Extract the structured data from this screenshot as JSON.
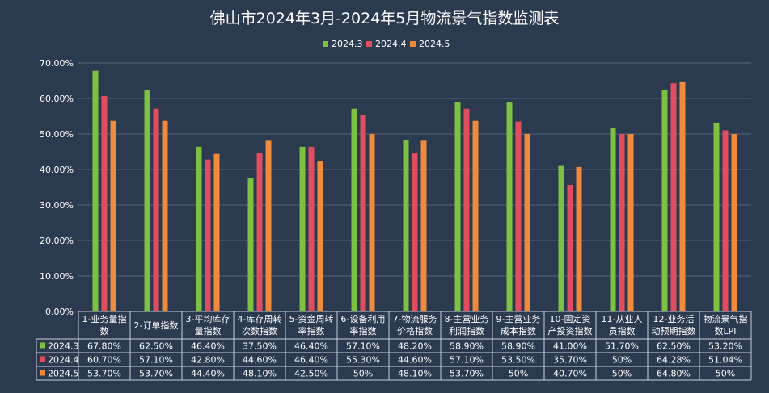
{
  "chart_data": {
    "type": "bar",
    "title": "佛山市2024年3月-2024年5月物流景气指数监测表",
    "ylim": [
      0,
      70
    ],
    "yticks": [
      "0.00%",
      "10.00%",
      "20.00%",
      "30.00%",
      "40.00%",
      "50.00%",
      "60.00%",
      "70.00%"
    ],
    "grid": true,
    "legend_position": "top",
    "categories": [
      [
        "1-业务量指",
        "数"
      ],
      [
        "2-订单指数"
      ],
      [
        "3-平均库存",
        "量指数"
      ],
      [
        "4-库存周转",
        "次数指数"
      ],
      [
        "5-资金周转",
        "率指数"
      ],
      [
        "6-设备利用",
        "率指数"
      ],
      [
        "7-物流服务",
        "价格指数"
      ],
      [
        "8-主营业务",
        "利润指数"
      ],
      [
        "9-主营业务",
        "成本指数"
      ],
      [
        "10-固定资",
        "产投资指数"
      ],
      [
        "11-从业人",
        "员指数"
      ],
      [
        "12-业务活",
        "动预期指数"
      ],
      [
        "物流景气指",
        "数LPI"
      ]
    ],
    "series": [
      {
        "name": "2024.3",
        "color": "#7cc142",
        "values": [
          67.8,
          62.5,
          46.4,
          37.5,
          46.4,
          57.1,
          48.2,
          58.9,
          58.9,
          41.0,
          51.7,
          62.5,
          53.2
        ],
        "labels": [
          "67.80%",
          "62.50%",
          "46.40%",
          "37.50%",
          "46.40%",
          "57.10%",
          "48.20%",
          "58.90%",
          "58.90%",
          "41.00%",
          "51.70%",
          "62.50%",
          "53.20%"
        ]
      },
      {
        "name": "2024.4",
        "color": "#e04d5e",
        "values": [
          60.7,
          57.1,
          42.8,
          44.6,
          46.4,
          55.3,
          44.6,
          57.1,
          53.5,
          35.7,
          50,
          64.28,
          51.04
        ],
        "labels": [
          "60.70%",
          "57.10%",
          "42.80%",
          "44.60%",
          "46.40%",
          "55.30%",
          "44.60%",
          "57.10%",
          "53.50%",
          "35.70%",
          "50%",
          "64.28%",
          "51.04%"
        ]
      },
      {
        "name": "2024.5",
        "color": "#f08a3c",
        "values": [
          53.7,
          53.7,
          44.4,
          48.1,
          42.5,
          50,
          48.1,
          53.7,
          50,
          40.7,
          50,
          64.8,
          50
        ],
        "labels": [
          "53.70%",
          "53.70%",
          "44.40%",
          "48.10%",
          "42.50%",
          "50%",
          "48.10%",
          "53.70%",
          "50%",
          "40.70%",
          "50%",
          "64.80%",
          "50%"
        ]
      }
    ]
  }
}
